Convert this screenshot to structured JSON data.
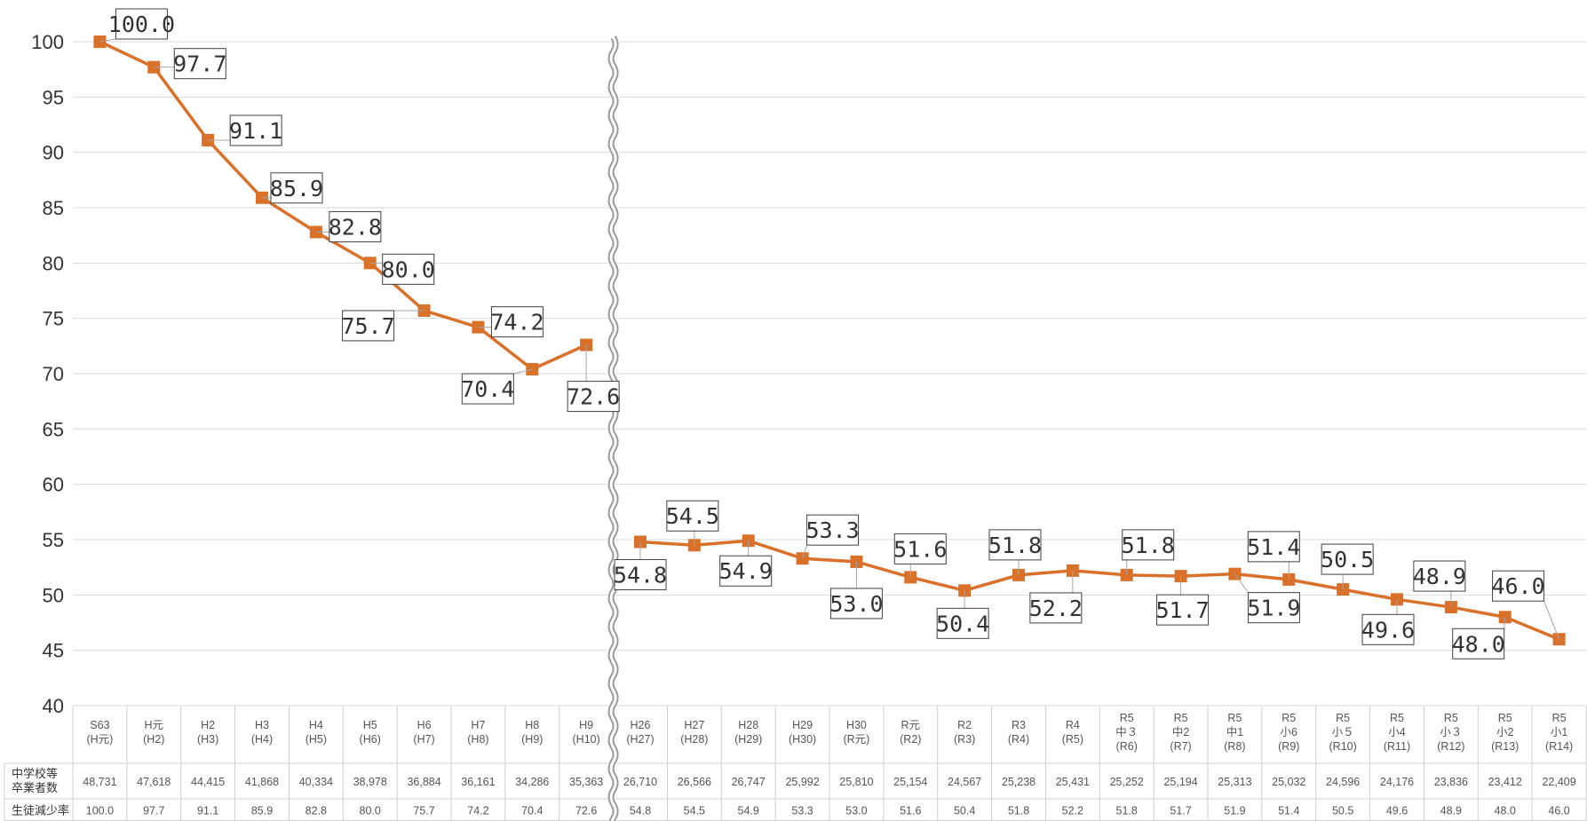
{
  "chart_data": {
    "type": "line",
    "title": "",
    "xlabel": "",
    "ylabel": "",
    "ylim": [
      40,
      100
    ],
    "yticks": [
      100,
      95,
      90,
      85,
      80,
      75,
      70,
      65,
      60,
      55,
      50,
      45,
      40
    ],
    "grid": true,
    "axis_break": "between H9 and H26",
    "line_color": "#d9712b",
    "marker": "square",
    "categories": [
      [
        "S63",
        "(H元)"
      ],
      [
        "H元",
        "(H2)"
      ],
      [
        "H2",
        "(H3)"
      ],
      [
        "H3",
        "(H4)"
      ],
      [
        "H4",
        "(H5)"
      ],
      [
        "H5",
        "(H6)"
      ],
      [
        "H6",
        "(H7)"
      ],
      [
        "H7",
        "(H8)"
      ],
      [
        "H8",
        "(H9)"
      ],
      [
        "H9",
        "(H10)"
      ],
      [
        "H26",
        "(H27)"
      ],
      [
        "H27",
        "(H28)"
      ],
      [
        "H28",
        "(H29)"
      ],
      [
        "H29",
        "(H30)"
      ],
      [
        "H30",
        "(R元)"
      ],
      [
        "R元",
        "(R2)"
      ],
      [
        "R2",
        "(R3)"
      ],
      [
        "R3",
        "(R4)"
      ],
      [
        "R4",
        "(R5)"
      ],
      [
        "R5",
        "中３",
        "(R6)"
      ],
      [
        "R5",
        "中2",
        "(R7)"
      ],
      [
        "R5",
        "中1",
        "(R8)"
      ],
      [
        "R5",
        "小6",
        "(R9)"
      ],
      [
        "R5",
        "小５",
        "(R10)"
      ],
      [
        "R5",
        "小4",
        "(R11)"
      ],
      [
        "R5",
        "小３",
        "(R12)"
      ],
      [
        "R5",
        "小2",
        "(R13)"
      ],
      [
        "R5",
        "小1",
        "(R14)"
      ]
    ],
    "series": [
      {
        "values": [
          100.0,
          97.7,
          91.1,
          85.9,
          82.8,
          80.0,
          75.7,
          74.2,
          70.4,
          72.6,
          54.8,
          54.5,
          54.9,
          53.3,
          53.0,
          51.6,
          50.4,
          51.8,
          52.2,
          51.8,
          51.7,
          51.9,
          51.4,
          50.5,
          49.6,
          48.9,
          48.0,
          46.0
        ]
      }
    ],
    "data_labels": [
      "100.0",
      "97.7",
      "91.1",
      "85.9",
      "82.8",
      "80.0",
      "75.7",
      "74.2",
      "70.4",
      "72.6",
      "54.8",
      "54.5",
      "54.9",
      "53.3",
      "53.0",
      "51.6",
      "50.4",
      "51.8",
      "52.2",
      "51.8",
      "51.7",
      "51.9",
      "51.4",
      "50.5",
      "49.6",
      "48.9",
      "48.0",
      "46.0"
    ],
    "table": {
      "rows": [
        {
          "header": [
            "中学校等",
            "卒業者数"
          ],
          "cells": [
            "48,731",
            "47,618",
            "44,415",
            "41,868",
            "40,334",
            "38,978",
            "36,884",
            "36,161",
            "34,286",
            "35,363",
            "26,710",
            "26,566",
            "26,747",
            "25,992",
            "25,810",
            "25,154",
            "24,567",
            "25,238",
            "25,431",
            "25,252",
            "25,194",
            "25,313",
            "25,032",
            "24,596",
            "24,176",
            "23,836",
            "23,412",
            "22,409"
          ]
        },
        {
          "header": [
            "生徒減少率"
          ],
          "cells": [
            "100.0",
            "97.7",
            "91.1",
            "85.9",
            "82.8",
            "80.0",
            "75.7",
            "74.2",
            "70.4",
            "72.6",
            "54.8",
            "54.5",
            "54.9",
            "53.3",
            "53.0",
            "51.6",
            "50.4",
            "51.8",
            "52.2",
            "51.8",
            "51.7",
            "51.9",
            "51.4",
            "50.5",
            "49.6",
            "48.9",
            "48.0",
            "46.0"
          ]
        }
      ]
    }
  }
}
